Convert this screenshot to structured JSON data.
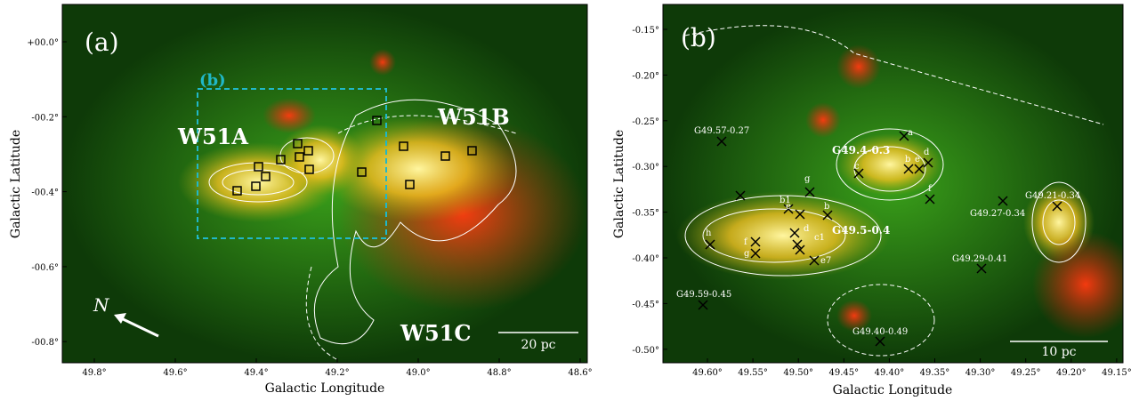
{
  "panels": [
    {
      "label": "(a)",
      "x_label": "Galactic Longitude",
      "y_label": "Galactic Latitude",
      "xticks": [
        "49.8°",
        "49.6°",
        "49.4°",
        "49.2°",
        "49.0°",
        "48.8°",
        "48.6°"
      ],
      "yticks": [
        "+00.0°",
        "-00.2°",
        "-00.4°",
        "-00.6°",
        "-00.8°"
      ],
      "annotations": [
        "(b)",
        "W51A",
        "W51B",
        "W51C",
        "N",
        "20 pc"
      ]
    },
    {
      "label": "(b)",
      "x_label": "Galactic Longitude",
      "y_label": "Galactic Latitude",
      "xticks": [
        "49.60°",
        "49.55°",
        "49.50°",
        "49.45°",
        "49.40°",
        "49.35°",
        "49.30°",
        "49.25°",
        "49.20°",
        "49.15°"
      ],
      "yticks": [
        "-0.15°",
        "-0.20°",
        "-0.25°",
        "-0.30°",
        "-0.35°",
        "-0.40°",
        "-0.45°",
        "-0.50°"
      ],
      "annotations": [
        "G49.57-0.27",
        "G49.4-0.3",
        "G49.5-0.4",
        "G49.21-0.34",
        "G49.27-0.34",
        "G49.29-0.41",
        "G49.59-0.45",
        "G49.40-0.49",
        "10 pc"
      ],
      "source_letters": [
        "a",
        "b",
        "e",
        "d",
        "c",
        "f",
        "h",
        "b1",
        "e",
        "d",
        "c1",
        "e7",
        "g",
        "f",
        "g",
        "b"
      ]
    }
  ]
}
